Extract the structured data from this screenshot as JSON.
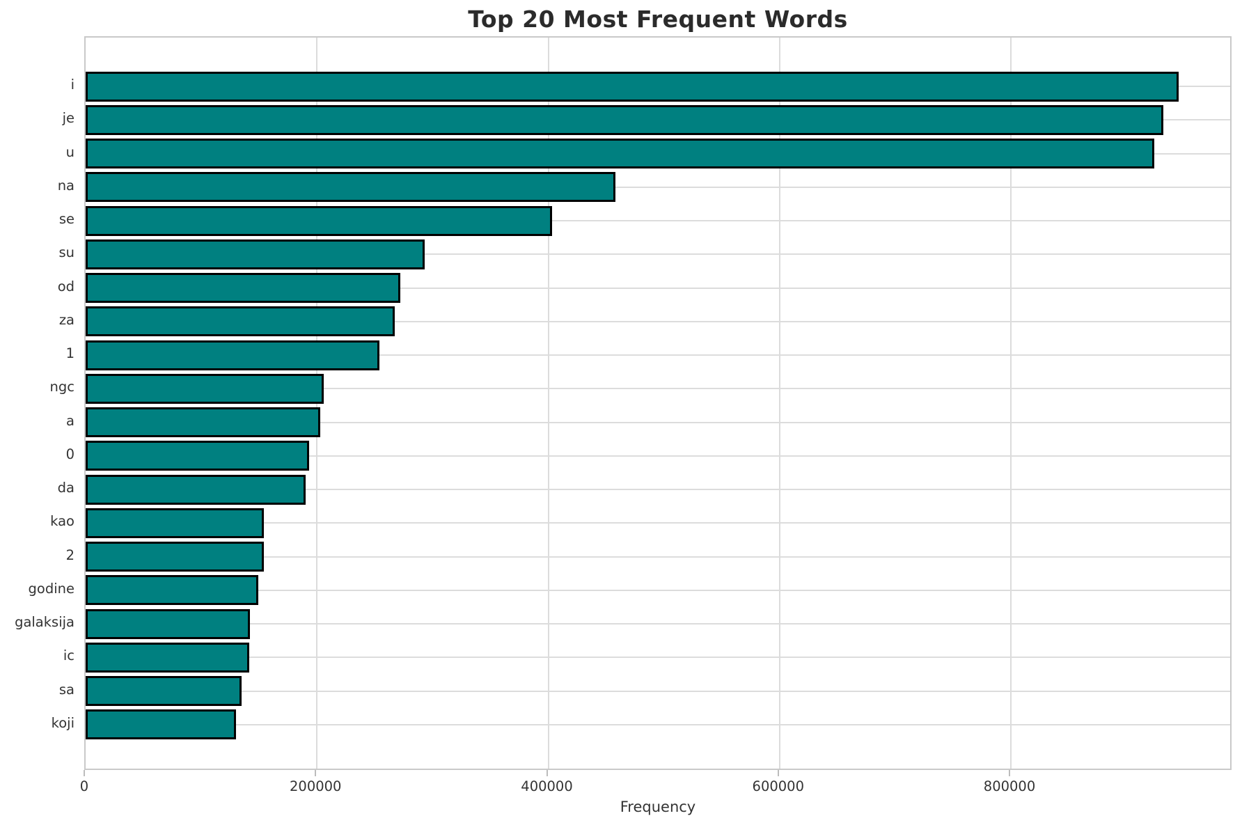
{
  "chart_data": {
    "type": "bar",
    "orientation": "horizontal",
    "title": "Top 20 Most Frequent Words",
    "xlabel": "Frequency",
    "ylabel": "",
    "categories": [
      "i",
      "je",
      "u",
      "na",
      "se",
      "su",
      "od",
      "za",
      "1",
      "ngc",
      "a",
      "0",
      "da",
      "kao",
      "2",
      "godine",
      "galaksija",
      "ic",
      "sa",
      "koji"
    ],
    "values": [
      945000,
      932000,
      924000,
      458000,
      403000,
      293000,
      272000,
      267000,
      254000,
      206000,
      203000,
      193000,
      190000,
      154000,
      154000,
      149000,
      142000,
      141500,
      135000,
      130000
    ],
    "xticks": [
      0,
      200000,
      400000,
      600000,
      800000
    ],
    "xtick_labels": [
      "0",
      "200000",
      "400000",
      "600000",
      "800000"
    ],
    "xlim": [
      0,
      992000
    ],
    "grid": true,
    "legend": false,
    "colors": {
      "bar_fill": "#008080",
      "bar_edge": "#000000",
      "grid": "#dcdcdc",
      "spine": "#c9c9c9",
      "tick": "#bcbcbc",
      "text": "#333333",
      "title": "#2b2b2b",
      "background": "#ffffff"
    }
  }
}
